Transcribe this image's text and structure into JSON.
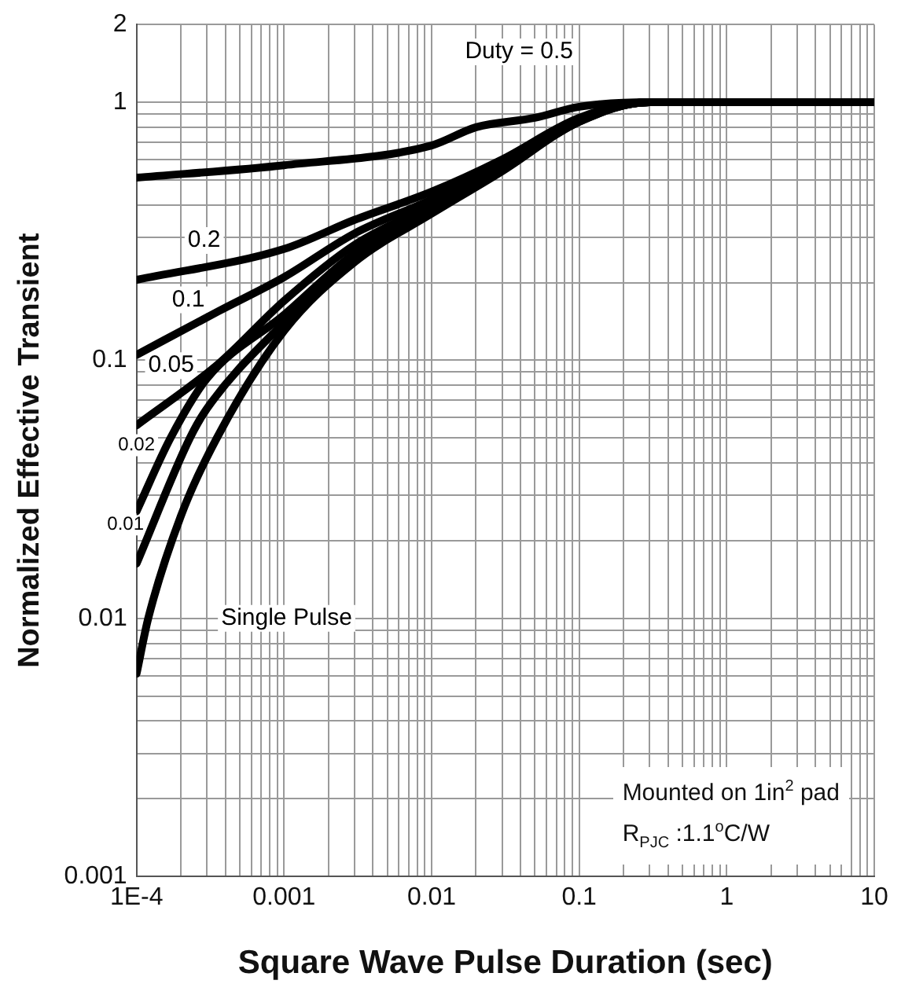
{
  "chart_data": {
    "type": "line",
    "xlabel": "Square Wave Pulse Duration (sec)",
    "ylabel": "Normalized Effective Transient",
    "log": "xy",
    "grid": true,
    "legend": false,
    "marker": "none",
    "line_style": "solid",
    "xlim": [
      0.0001,
      10
    ],
    "ylim": [
      0.001,
      2
    ],
    "xticks": [
      {
        "value": 0.0001,
        "label": "1E-4"
      },
      {
        "value": 0.0002,
        "label": null
      },
      {
        "value": 0.0003,
        "label": null
      },
      {
        "value": 0.0004,
        "label": null
      },
      {
        "value": 0.0005,
        "label": null
      },
      {
        "value": 0.0006,
        "label": null
      },
      {
        "value": 0.0007,
        "label": null
      },
      {
        "value": 0.0008,
        "label": null
      },
      {
        "value": 0.0009,
        "label": null
      },
      0.001,
      {
        "value": 0.002,
        "label": null
      },
      {
        "value": 0.003,
        "label": null
      },
      {
        "value": 0.004,
        "label": null
      },
      {
        "value": 0.005,
        "label": null
      },
      {
        "value": 0.006,
        "label": null
      },
      {
        "value": 0.007,
        "label": null
      },
      {
        "value": 0.008,
        "label": null
      },
      {
        "value": 0.009,
        "label": null
      },
      0.01,
      {
        "value": 0.02,
        "label": null
      },
      {
        "value": 0.03,
        "label": null
      },
      {
        "value": 0.04,
        "label": null
      },
      {
        "value": 0.05,
        "label": null
      },
      {
        "value": 0.06,
        "label": null
      },
      {
        "value": 0.07,
        "label": null
      },
      {
        "value": 0.08,
        "label": null
      },
      {
        "value": 0.09,
        "label": null
      },
      0.1,
      {
        "value": 0.2,
        "label": null
      },
      {
        "value": 0.3,
        "label": null
      },
      {
        "value": 0.4,
        "label": null
      },
      {
        "value": 0.5,
        "label": null
      },
      {
        "value": 0.6,
        "label": null
      },
      {
        "value": 0.7,
        "label": null
      },
      {
        "value": 0.8,
        "label": null
      },
      {
        "value": 0.9,
        "label": null
      },
      1,
      {
        "value": 2,
        "label": null
      },
      {
        "value": 3,
        "label": null
      },
      {
        "value": 4,
        "label": null
      },
      {
        "value": 5,
        "label": null
      },
      {
        "value": 6,
        "label": null
      },
      {
        "value": 7,
        "label": null
      },
      {
        "value": 8,
        "label": null
      },
      {
        "value": 9,
        "label": null
      },
      10
    ],
    "yticks": [
      0.001,
      {
        "value": 0.002,
        "label": null
      },
      {
        "value": 0.003,
        "label": null
      },
      {
        "value": 0.004,
        "label": null
      },
      {
        "value": 0.005,
        "label": null
      },
      {
        "value": 0.006,
        "label": null
      },
      {
        "value": 0.007,
        "label": null
      },
      {
        "value": 0.008,
        "label": null
      },
      {
        "value": 0.009,
        "label": null
      },
      0.01,
      {
        "value": 0.02,
        "label": null
      },
      {
        "value": 0.03,
        "label": null
      },
      {
        "value": 0.04,
        "label": null
      },
      {
        "value": 0.05,
        "label": null
      },
      {
        "value": 0.06,
        "label": null
      },
      {
        "value": 0.07,
        "label": null
      },
      {
        "value": 0.08,
        "label": null
      },
      {
        "value": 0.09,
        "label": null
      },
      0.1,
      {
        "value": 0.2,
        "label": null
      },
      {
        "value": 0.3,
        "label": null
      },
      {
        "value": 0.4,
        "label": null
      },
      {
        "value": 0.5,
        "label": null
      },
      {
        "value": 0.6,
        "label": null
      },
      {
        "value": 0.7,
        "label": null
      },
      {
        "value": 0.8,
        "label": null
      },
      {
        "value": 0.9,
        "label": null
      },
      1,
      2
    ],
    "series": [
      {
        "name": "Duty = 0.5",
        "color": "#000000",
        "x": [
          0.0001,
          0.001,
          0.01,
          0.02,
          0.05,
          0.1,
          0.3,
          10
        ],
        "values": [
          0.51,
          0.57,
          0.68,
          0.8,
          0.87,
          0.96,
          1,
          1
        ]
      },
      {
        "name": "0.2",
        "color": "#000000",
        "x": [
          0.0001,
          0.001,
          0.003,
          0.01,
          0.03,
          0.1,
          0.3,
          10
        ],
        "values": [
          0.205,
          0.27,
          0.35,
          0.45,
          0.6,
          0.87,
          1,
          1
        ]
      },
      {
        "name": "0.1",
        "color": "#000000",
        "x": [
          0.0001,
          0.00036,
          0.001,
          0.003,
          0.01,
          0.03,
          0.1,
          0.3,
          10
        ],
        "values": [
          0.105,
          0.155,
          0.21,
          0.31,
          0.42,
          0.58,
          0.86,
          1,
          1
        ]
      },
      {
        "name": "0.05",
        "color": "#000000",
        "x": [
          0.0001,
          0.00036,
          0.001,
          0.003,
          0.01,
          0.03,
          0.1,
          0.3,
          10
        ],
        "values": [
          0.056,
          0.097,
          0.17,
          0.28,
          0.4,
          0.57,
          0.85,
          1,
          1
        ]
      },
      {
        "name": "0.02",
        "color": "#000000",
        "x": [
          0.0001,
          0.00017,
          0.0003,
          0.001,
          0.003,
          0.01,
          0.03,
          0.1,
          0.3,
          10
        ],
        "values": [
          0.026,
          0.05,
          0.085,
          0.15,
          0.26,
          0.39,
          0.56,
          0.85,
          1,
          1
        ]
      },
      {
        "name": "0.01",
        "color": "#000000",
        "x": [
          0.0001,
          0.00023,
          0.0003,
          0.001,
          0.003,
          0.01,
          0.03,
          0.1,
          0.3,
          10
        ],
        "values": [
          0.0163,
          0.05,
          0.065,
          0.14,
          0.25,
          0.38,
          0.55,
          0.84,
          1,
          1
        ]
      },
      {
        "name": "Single Pulse",
        "color": "#000000",
        "x": [
          0.0001,
          0.00012,
          0.0002,
          0.00035,
          0.001,
          0.003,
          0.01,
          0.03,
          0.1,
          0.3,
          10
        ],
        "values": [
          0.0061,
          0.01,
          0.025,
          0.05,
          0.13,
          0.24,
          0.37,
          0.54,
          0.84,
          1,
          1
        ]
      }
    ],
    "annotations": [
      "Mounted on 1in$^{2}$ pad",
      "R$_{PJC}$ :1.1$^{o}$C/W"
    ]
  }
}
